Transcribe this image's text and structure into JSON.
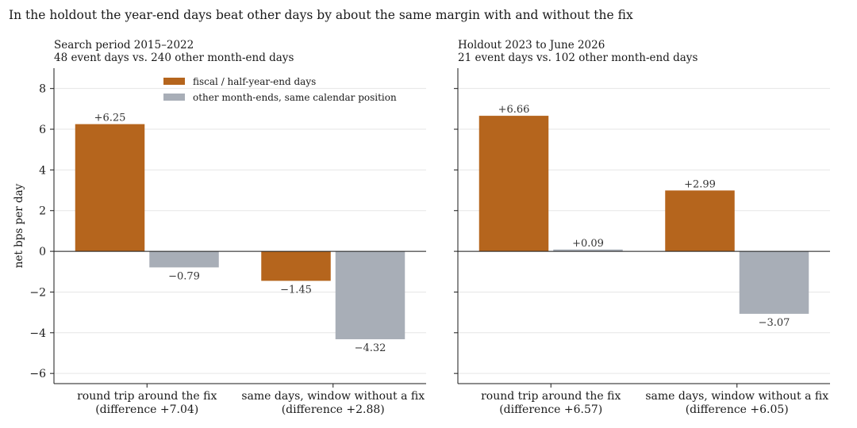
{
  "suptitle": "In the holdout the year-end days beat other days by about the same margin with and without the fix",
  "ylabel": "net bps per day",
  "legend": {
    "placement": "top-center of left panel",
    "entries": [
      {
        "label": "fiscal / half-year-end days",
        "color": "#b5651d"
      },
      {
        "label": "other month-ends, same calendar position",
        "color": "#a8aeb7"
      }
    ]
  },
  "colors": {
    "event": "#b5651d",
    "other": "#a8aeb7",
    "grid": "#e6e6e6",
    "axis": "#1a1a1a"
  },
  "chart_data": [
    {
      "type": "bar",
      "title": "Search period 2015–2022",
      "subtitle": "48 event days vs. 240 other month-end days",
      "ylabel": "net bps per day",
      "ylim": [
        -6.5,
        9
      ],
      "yticks": [
        "−6",
        "−4",
        "−2",
        "0",
        "2",
        "4",
        "6",
        "8"
      ],
      "grid": "horizontal",
      "categories": [
        [
          "round trip around the fix",
          "(difference +7.04)"
        ],
        [
          "same days, window without a fix",
          "(difference +2.88)"
        ]
      ],
      "series": [
        {
          "name": "fiscal / half-year-end days",
          "values": [
            6.25,
            -1.45
          ],
          "labels": [
            "+6.25",
            "−1.45"
          ]
        },
        {
          "name": "other month-ends, same calendar position",
          "values": [
            -0.79,
            -4.32
          ],
          "labels": [
            "−0.79",
            "−4.32"
          ]
        }
      ]
    },
    {
      "type": "bar",
      "title": "Holdout 2023 to June 2026",
      "subtitle": "21 event days vs. 102 other month-end days",
      "ylim": [
        -6.5,
        9
      ],
      "grid": "horizontal",
      "categories": [
        [
          "round trip around the fix",
          "(difference +6.57)"
        ],
        [
          "same days, window without a fix",
          "(difference +6.05)"
        ]
      ],
      "series": [
        {
          "name": "fiscal / half-year-end days",
          "values": [
            6.66,
            2.99
          ],
          "labels": [
            "+6.66",
            "+2.99"
          ]
        },
        {
          "name": "other month-ends, same calendar position",
          "values": [
            0.09,
            -3.07
          ],
          "labels": [
            "+0.09",
            "−3.07"
          ]
        }
      ]
    }
  ]
}
